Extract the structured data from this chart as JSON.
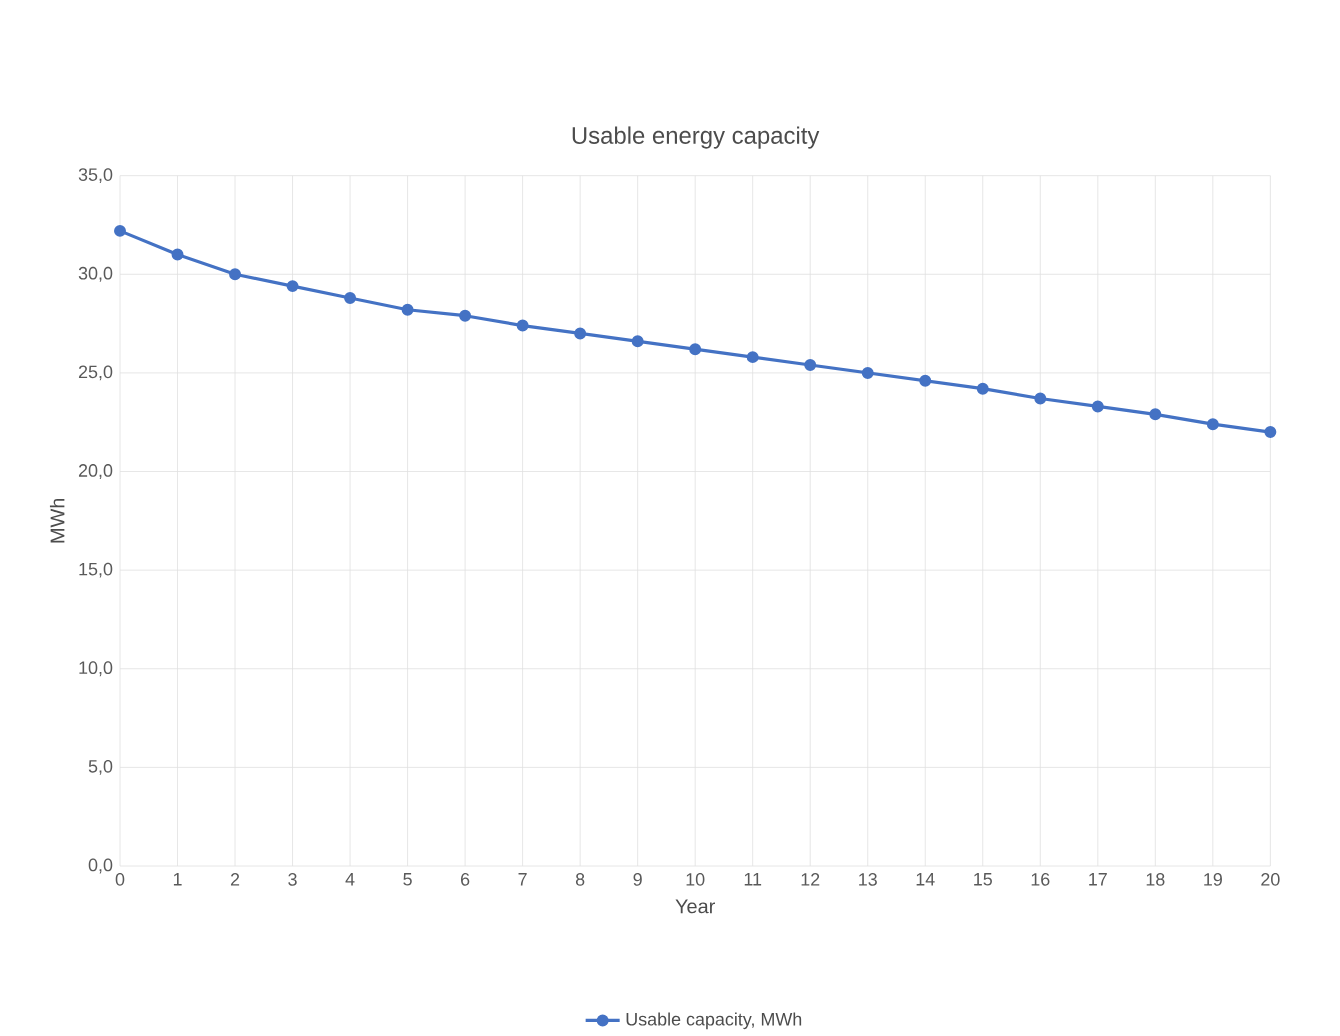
{
  "chart_data": {
    "type": "line",
    "title": "Usable energy capacity",
    "xlabel": "Year",
    "ylabel": "MWh",
    "categories": [
      "0",
      "1",
      "2",
      "3",
      "4",
      "5",
      "6",
      "7",
      "8",
      "9",
      "10",
      "11",
      "12",
      "13",
      "14",
      "15",
      "16",
      "17",
      "18",
      "19",
      "20"
    ],
    "series": [
      {
        "name": "Usable capacity, MWh",
        "color": "#4472c4",
        "values": [
          32.2,
          31.0,
          30.0,
          29.4,
          28.8,
          28.2,
          27.9,
          27.4,
          27.0,
          26.6,
          26.2,
          25.8,
          25.4,
          25.0,
          24.6,
          24.2,
          23.7,
          23.3,
          22.9,
          22.4,
          22.0
        ]
      }
    ],
    "ylim": [
      0,
      35
    ],
    "yticks": [
      {
        "value": 0,
        "label": "0,0"
      },
      {
        "value": 5,
        "label": "5,0"
      },
      {
        "value": 10,
        "label": "10,0"
      },
      {
        "value": 15,
        "label": "15,0"
      },
      {
        "value": 20,
        "label": "20,0"
      },
      {
        "value": 25,
        "label": "25,0"
      },
      {
        "value": 30,
        "label": "30,0"
      },
      {
        "value": 35,
        "label": "35,0"
      }
    ],
    "grid": true,
    "legend": "bottom",
    "marker": "circle",
    "line_style": "solid"
  }
}
